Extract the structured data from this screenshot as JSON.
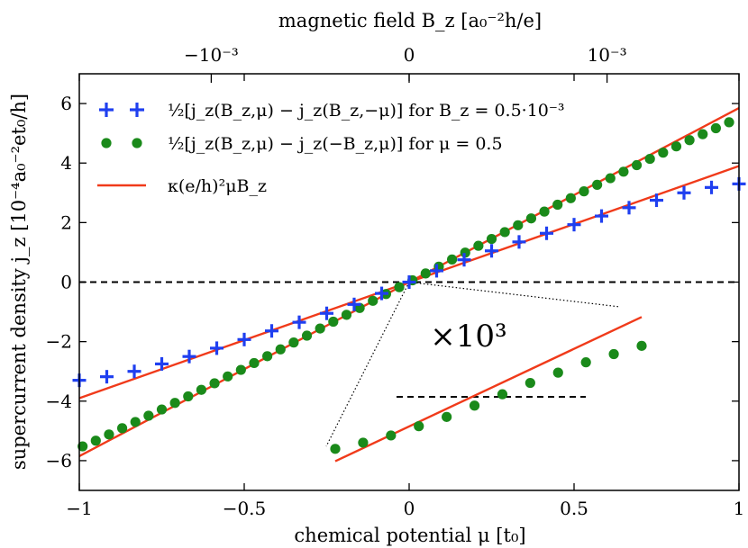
{
  "chart_data": {
    "type": "scatter",
    "xlabel": "chemical potential μ [t₀]",
    "ylabel": "supercurrent density j_z [10⁻⁴a₀⁻²et₀/h]",
    "top_xlabel": "magnetic field B_z [a₀⁻²h/e]",
    "xlim": [
      -1,
      1
    ],
    "ylim": [
      -7,
      7
    ],
    "x_ticks": [
      -1,
      -0.5,
      0,
      0.5,
      1
    ],
    "x_tick_labels": [
      "−1",
      "−0.5",
      "0",
      "0.5",
      "1"
    ],
    "y_ticks": [
      -6,
      -4,
      -2,
      0,
      2,
      4,
      6
    ],
    "y_tick_labels": [
      "−6",
      "−4",
      "−2",
      "0",
      "2",
      "4",
      "6"
    ],
    "top_x_ticks": [
      -0.6,
      0,
      0.6
    ],
    "top_x_tick_labels": [
      "−10⁻³",
      "0",
      "10⁻³"
    ],
    "legend_position": "top-left",
    "grid": false,
    "series": [
      {
        "name": "½[j_z(B_z,μ) − j_z(B_z,−μ)]  for  B_z = 0.5·10⁻³",
        "marker": "plus",
        "color": "#1f3ff0",
        "x": [
          -1.0,
          -0.9167,
          -0.8333,
          -0.75,
          -0.6667,
          -0.5833,
          -0.5,
          -0.4167,
          -0.3333,
          -0.25,
          -0.1667,
          -0.0833,
          0.0,
          0.0833,
          0.1667,
          0.25,
          0.3333,
          0.4167,
          0.5,
          0.5833,
          0.6667,
          0.75,
          0.8333,
          0.9167,
          1.0
        ],
        "y": [
          -3.3,
          -3.18,
          -3.0,
          -2.75,
          -2.5,
          -2.22,
          -1.93,
          -1.64,
          -1.35,
          -1.05,
          -0.75,
          -0.38,
          0.0,
          0.38,
          0.75,
          1.05,
          1.35,
          1.64,
          1.93,
          2.22,
          2.5,
          2.75,
          3.0,
          3.18,
          3.3
        ]
      },
      {
        "name": "½[j_z(B_z,μ) − j_z(−B_z,μ)]  for  μ = 0.5",
        "marker": "circle",
        "color": "#1a8a1a",
        "x": [
          -0.99,
          -0.95,
          -0.91,
          -0.87,
          -0.83,
          -0.79,
          -0.75,
          -0.71,
          -0.67,
          -0.63,
          -0.59,
          -0.55,
          -0.51,
          -0.47,
          -0.43,
          -0.39,
          -0.35,
          -0.31,
          -0.27,
          -0.23,
          -0.19,
          -0.15,
          -0.11,
          -0.07,
          -0.03,
          0.01,
          0.05,
          0.09,
          0.13,
          0.17,
          0.21,
          0.25,
          0.29,
          0.33,
          0.37,
          0.41,
          0.45,
          0.49,
          0.53,
          0.57,
          0.61,
          0.65,
          0.69,
          0.73,
          0.77,
          0.81,
          0.85,
          0.89,
          0.93,
          0.97
        ],
        "y": [
          -5.52,
          -5.33,
          -5.12,
          -4.91,
          -4.7,
          -4.49,
          -4.28,
          -4.06,
          -3.84,
          -3.62,
          -3.4,
          -3.17,
          -2.95,
          -2.72,
          -2.49,
          -2.26,
          -2.03,
          -1.8,
          -1.56,
          -1.33,
          -1.1,
          -0.87,
          -0.63,
          -0.4,
          -0.17,
          0.06,
          0.29,
          0.52,
          0.76,
          0.99,
          1.22,
          1.45,
          1.68,
          1.91,
          2.14,
          2.37,
          2.6,
          2.82,
          3.05,
          3.27,
          3.49,
          3.71,
          3.93,
          4.14,
          4.35,
          4.56,
          4.77,
          4.97,
          5.17,
          5.37
        ]
      },
      {
        "name": "κ(e/h)²μB_z",
        "marker": "line",
        "color": "#f03a1a",
        "lines": [
          {
            "x": [
              -1,
              1
            ],
            "y": [
              -3.9,
              3.9
            ]
          },
          {
            "x": [
              -1,
              1
            ],
            "y": [
              -5.85,
              5.85
            ]
          }
        ]
      }
    ],
    "inset": {
      "label": "×10³",
      "points": [
        {
          "x": 0.0,
          "y": 0.0
        },
        {
          "x": 1,
          "y": 0.6
        },
        {
          "x": 2,
          "y": 1.3
        },
        {
          "x": 3,
          "y": 2.2
        },
        {
          "x": 4,
          "y": 3.1
        },
        {
          "x": 5,
          "y": 4.2
        },
        {
          "x": 6,
          "y": 5.3
        },
        {
          "x": 7,
          "y": 6.4
        },
        {
          "x": 8,
          "y": 7.4
        },
        {
          "x": 9,
          "y": 8.4
        },
        {
          "x": 10,
          "y": 9.2
        },
        {
          "x": 11,
          "y": 10.0
        }
      ],
      "line": {
        "x": [
          0,
          11
        ],
        "y": [
          -1.2,
          12.8
        ]
      }
    },
    "colors": {
      "reference_line": "#000000",
      "fit": "#f03a1a",
      "plus": "#1f3ff0",
      "circle": "#1a8a1a"
    }
  }
}
